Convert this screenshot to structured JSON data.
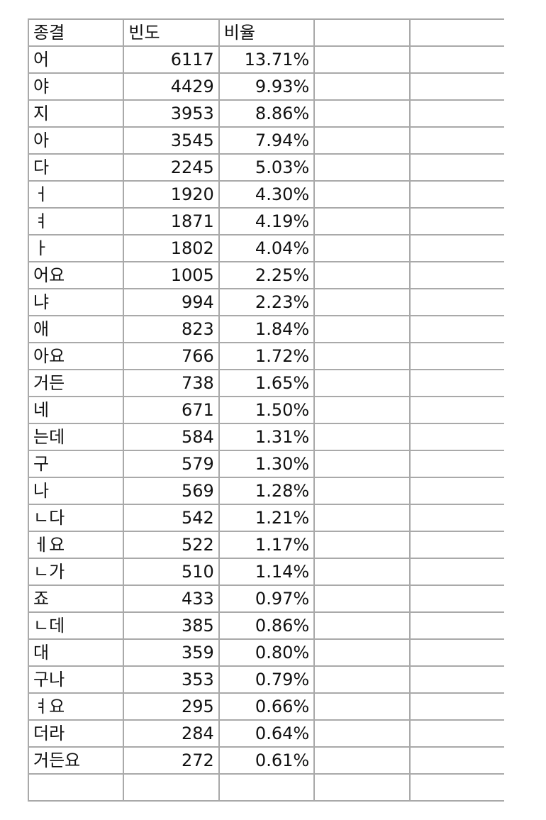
{
  "table": {
    "headers": [
      "종결",
      "빈도",
      "비율",
      "",
      ""
    ],
    "rows": [
      {
        "ending": "어",
        "freq": "6117",
        "ratio": "13.71%"
      },
      {
        "ending": "야",
        "freq": "4429",
        "ratio": "9.93%"
      },
      {
        "ending": "지",
        "freq": "3953",
        "ratio": "8.86%"
      },
      {
        "ending": "아",
        "freq": "3545",
        "ratio": "7.94%"
      },
      {
        "ending": "다",
        "freq": "2245",
        "ratio": "5.03%"
      },
      {
        "ending": "ㅓ",
        "freq": "1920",
        "ratio": "4.30%"
      },
      {
        "ending": "ㅕ",
        "freq": "1871",
        "ratio": "4.19%"
      },
      {
        "ending": "ㅏ",
        "freq": "1802",
        "ratio": "4.04%"
      },
      {
        "ending": "어요",
        "freq": "1005",
        "ratio": "2.25%"
      },
      {
        "ending": "냐",
        "freq": "994",
        "ratio": "2.23%"
      },
      {
        "ending": "애",
        "freq": "823",
        "ratio": "1.84%"
      },
      {
        "ending": "아요",
        "freq": "766",
        "ratio": "1.72%"
      },
      {
        "ending": "거든",
        "freq": "738",
        "ratio": "1.65%"
      },
      {
        "ending": "네",
        "freq": "671",
        "ratio": "1.50%"
      },
      {
        "ending": "는데",
        "freq": "584",
        "ratio": "1.31%"
      },
      {
        "ending": "구",
        "freq": "579",
        "ratio": "1.30%"
      },
      {
        "ending": "나",
        "freq": "569",
        "ratio": "1.28%"
      },
      {
        "ending": "ㄴ다",
        "freq": "542",
        "ratio": "1.21%"
      },
      {
        "ending": "ㅔ요",
        "freq": "522",
        "ratio": "1.17%"
      },
      {
        "ending": "ㄴ가",
        "freq": "510",
        "ratio": "1.14%"
      },
      {
        "ending": "죠",
        "freq": "433",
        "ratio": "0.97%"
      },
      {
        "ending": "ㄴ데",
        "freq": "385",
        "ratio": "0.86%"
      },
      {
        "ending": "대",
        "freq": "359",
        "ratio": "0.80%"
      },
      {
        "ending": "구나",
        "freq": "353",
        "ratio": "0.79%"
      },
      {
        "ending": "ㅕ요",
        "freq": "295",
        "ratio": "0.66%"
      },
      {
        "ending": "더라",
        "freq": "284",
        "ratio": "0.64%"
      },
      {
        "ending": "거든요",
        "freq": "272",
        "ratio": "0.61%"
      },
      {
        "ending": "",
        "freq": "",
        "ratio": ""
      }
    ]
  }
}
